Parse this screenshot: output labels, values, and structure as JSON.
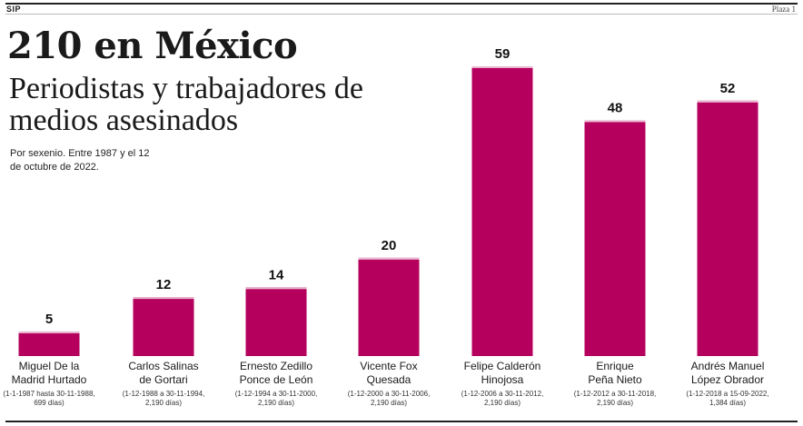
{
  "header": {
    "left": "SIP",
    "right": "Plaza 1"
  },
  "title": "210 en México",
  "subtitle": "Periodistas y trabajadores de medios asesinados",
  "note": "Por sexenio. Entre 1987 y el 12 de octubre de 2022.",
  "colors": {
    "bar": "#b5005e",
    "text": "#1a1a1a"
  },
  "chart_data": {
    "type": "bar",
    "title": "210 en México",
    "subtitle": "Periodistas y trabajadores de medios asesinados",
    "categories": [
      [
        "Miguel De la",
        "Madrid Hurtado"
      ],
      [
        "Carlos Salinas",
        "de Gortari"
      ],
      [
        "Ernesto Zedillo",
        "Ponce de León"
      ],
      [
        "Vicente Fox",
        "Quesada"
      ],
      [
        "Felipe Calderón",
        "Hinojosa"
      ],
      [
        "Enrique",
        "Peña Nieto"
      ],
      [
        "Andrés Manuel",
        "López Obrador"
      ]
    ],
    "details": [
      [
        "(1-1-1987 hasta 30-11-1988,",
        "699 días)"
      ],
      [
        "(1-12-1988 a 30-11-1994,",
        "2,190 días)"
      ],
      [
        "(1-12-1994 a 30-11-2000,",
        "2,190 días)"
      ],
      [
        "(1-12-2000 a 30-11-2006,",
        "2,190 días)"
      ],
      [
        "(1-12-2006 a 30-11-2012,",
        "2,190 días)"
      ],
      [
        "(1-12-2012 a 30-11-2018,",
        "2,190 días)"
      ],
      [
        "(1-12-2018 a 15-09-2022,",
        "1,384 días)"
      ]
    ],
    "values": [
      5,
      12,
      14,
      20,
      59,
      48,
      52
    ],
    "ylim": [
      0,
      59
    ],
    "grid": false,
    "legend": "none"
  }
}
